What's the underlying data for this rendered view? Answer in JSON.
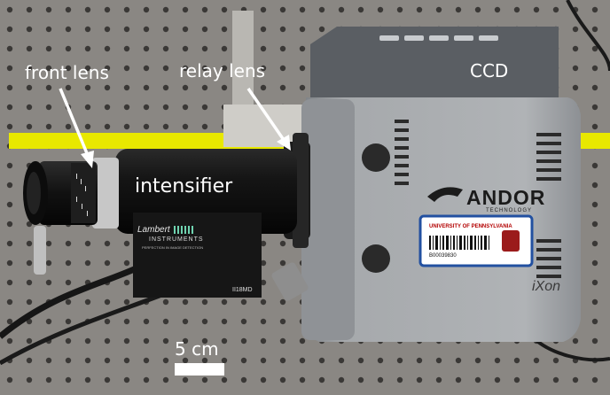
{
  "labels": {
    "front_lens": "front lens",
    "relay_lens": "relay lens",
    "ccd": "CCD",
    "intensifier": "intensifier",
    "scale": "5 cm"
  },
  "device_text": {
    "andor": "ANDOR",
    "andor_sub": "TECHNOLOGY",
    "ixon": "iXon",
    "lambert": "Lambert",
    "lambert_instruments": "INSTRUMENTS",
    "lambert_tagline": "PERFECTION IN IMAGE DETECTION",
    "model": "II18MD",
    "sticker_university": "UNIVERSITY OF PENNSYLVANIA",
    "sticker_barcode": "B00039830"
  },
  "colors": {
    "pegboard": "#8a8783",
    "ccd_body": "#a2a5a8",
    "ccd_top": "#5a5e63",
    "intensifier_body": "#121212",
    "tape": "#e8e800",
    "label_text": "#ffffff"
  }
}
